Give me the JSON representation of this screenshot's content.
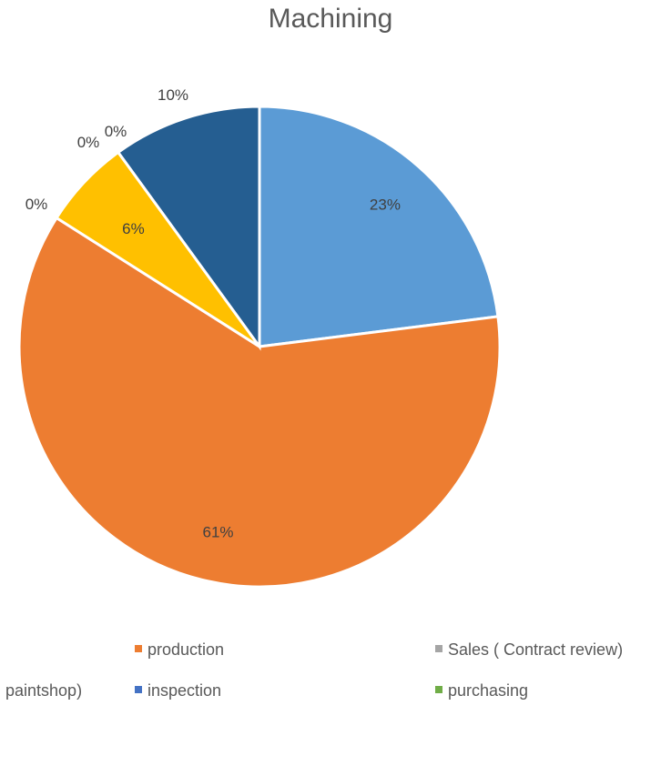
{
  "chart_data": {
    "type": "pie",
    "title": "Machining",
    "slices": [
      {
        "name": "",
        "value": 23,
        "label": "23%",
        "color": "#5B9BD5"
      },
      {
        "name": "production",
        "value": 61,
        "label": "61%",
        "color": "#ED7D31"
      },
      {
        "name": "Sales ( Contract review)",
        "value": 0,
        "label": "0%",
        "color": "#A5A5A5"
      },
      {
        "name": "",
        "value": 6,
        "label": "6%",
        "color": "#FFC000"
      },
      {
        "name": "inspection",
        "value": 0,
        "label": "0%",
        "color": "#4472C4"
      },
      {
        "name": "purchasing",
        "value": 0,
        "label": "0%",
        "color": "#70AD47"
      },
      {
        "name": "",
        "value": 10,
        "label": "10%",
        "color": "#255E91"
      }
    ],
    "legend": {
      "position": "bottom",
      "items": [
        {
          "label": "production",
          "color": "#ED7D31"
        },
        {
          "label": "Sales ( Contract review)",
          "color": "#A5A5A5"
        },
        {
          "label": "paintshop)",
          "color": ""
        },
        {
          "label": "inspection",
          "color": "#4472C4"
        },
        {
          "label": "purchasing",
          "color": "#70AD47"
        }
      ]
    }
  }
}
